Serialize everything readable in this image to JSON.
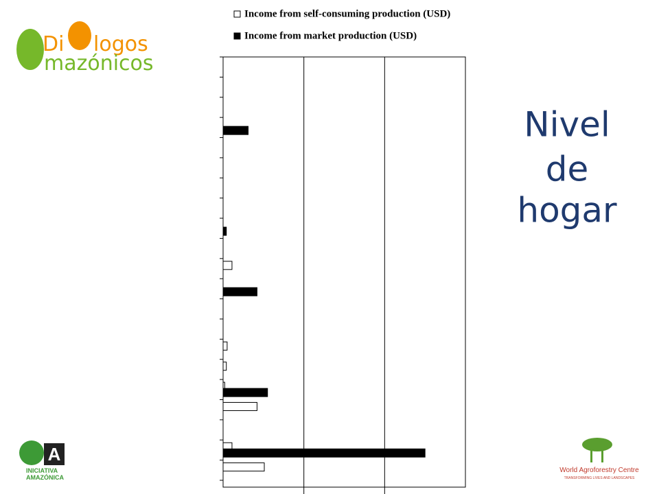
{
  "chart_data": {
    "type": "bar",
    "orientation": "horizontal",
    "title": "Nivel de hogar",
    "categories": [
      null,
      null,
      null,
      null,
      null,
      null,
      null,
      null,
      null,
      null,
      null,
      null,
      null,
      null,
      null,
      null,
      null,
      null,
      null,
      null,
      null
    ],
    "series": [
      {
        "name": "Income from self-consuming production (USD)",
        "color": "#ffffff",
        "values": [
          null,
          null,
          null,
          null,
          null,
          null,
          null,
          null,
          null,
          null,
          0.11,
          null,
          null,
          null,
          0.05,
          0.04,
          0.02,
          0.42,
          null,
          0.11,
          0.51
        ]
      },
      {
        "name": "Income from market production (USD)",
        "color": "#000000",
        "values": [
          null,
          null,
          null,
          0.31,
          null,
          null,
          null,
          null,
          0.04,
          null,
          null,
          0.42,
          null,
          null,
          null,
          null,
          0.55,
          null,
          null,
          2.5,
          null
        ]
      }
    ],
    "xlim": [
      0,
      3
    ]
  },
  "logos": {
    "dialogos": [
      "Di",
      "logos",
      "mazónicos"
    ],
    "iniciativa": [
      "INICIATIVA",
      "AMAZÓNICA"
    ],
    "icraf": [
      "World Agroforestry Centre",
      "TRANSFORMING LIVES AND LANDSCAPES"
    ]
  }
}
